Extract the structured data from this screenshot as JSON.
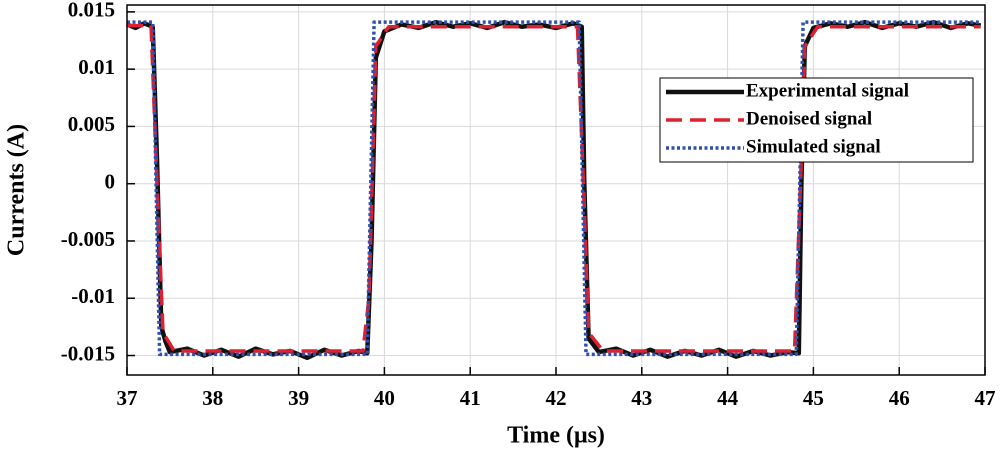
{
  "chart_data": {
    "type": "line",
    "x_label": "Time (μs)",
    "y_label": "Currents (A)",
    "xlim": [
      37,
      47
    ],
    "xticks": [
      37,
      38,
      39,
      40,
      41,
      42,
      43,
      44,
      45,
      46,
      47
    ],
    "ylim": [
      -0.0167,
      0.0156
    ],
    "yticks": [
      -0.015,
      -0.01,
      -0.005,
      0,
      0.005,
      0.01,
      0.015
    ],
    "grid": true,
    "legend": "upper right",
    "series": [
      {
        "name": "Experimental signal",
        "color": "#111111",
        "style": "solid",
        "x": [
          37.0,
          37.1,
          37.2,
          37.3,
          37.35,
          37.4,
          37.45,
          37.5,
          37.7,
          37.9,
          38.1,
          38.3,
          38.5,
          38.7,
          38.9,
          39.1,
          39.3,
          39.5,
          39.7,
          39.8,
          39.85,
          39.9,
          40.0,
          40.2,
          40.4,
          40.6,
          40.8,
          41.0,
          41.2,
          41.4,
          41.6,
          41.8,
          42.0,
          42.2,
          42.3,
          42.33,
          42.38,
          42.5,
          42.7,
          42.9,
          43.1,
          43.3,
          43.5,
          43.7,
          43.9,
          44.1,
          44.3,
          44.5,
          44.7,
          44.83,
          44.86,
          44.9,
          45.0,
          45.2,
          45.4,
          45.6,
          45.8,
          46.0,
          46.2,
          46.4,
          46.6,
          46.8,
          46.95
        ],
        "values": [
          0.0139,
          0.0136,
          0.014,
          0.0137,
          0.002,
          -0.0125,
          -0.0138,
          -0.0147,
          -0.0144,
          -0.015,
          -0.0145,
          -0.0151,
          -0.0144,
          -0.0149,
          -0.0146,
          -0.0152,
          -0.0145,
          -0.015,
          -0.0146,
          -0.0148,
          -0.005,
          0.011,
          0.0133,
          0.0139,
          0.0136,
          0.0141,
          0.0137,
          0.014,
          0.0136,
          0.0141,
          0.0137,
          0.0139,
          0.0136,
          0.014,
          0.0137,
          0.0,
          -0.0135,
          -0.0147,
          -0.0144,
          -0.015,
          -0.0145,
          -0.0151,
          -0.0146,
          -0.015,
          -0.0145,
          -0.0151,
          -0.0146,
          -0.015,
          -0.0147,
          -0.0148,
          0.0,
          0.012,
          0.0136,
          0.014,
          0.0137,
          0.0141,
          0.0136,
          0.014,
          0.0137,
          0.0141,
          0.0136,
          0.014,
          0.0138
        ]
      },
      {
        "name": "Denoised signal",
        "color": "#e0202f",
        "style": "dashed",
        "x": [
          37.0,
          37.28,
          37.35,
          37.42,
          37.55,
          39.75,
          39.82,
          39.9,
          40.05,
          42.25,
          42.32,
          42.38,
          42.55,
          44.78,
          44.85,
          44.9,
          45.05,
          46.95
        ],
        "values": [
          0.0138,
          0.0138,
          0,
          -0.013,
          -0.0146,
          -0.0146,
          -0.01,
          0.012,
          0.0137,
          0.0137,
          0,
          -0.013,
          -0.0146,
          -0.0146,
          0,
          0.012,
          0.0137,
          0.0137
        ]
      },
      {
        "name": "Simulated signal",
        "color": "#3050b0",
        "style": "dotted",
        "x": [
          37.0,
          37.3,
          37.38,
          39.8,
          39.88,
          42.27,
          42.35,
          44.8,
          44.88,
          46.95
        ],
        "values": [
          0.0141,
          0.0141,
          -0.0149,
          -0.0149,
          0.0141,
          0.0141,
          -0.0149,
          -0.0149,
          0.0141,
          0.0141
        ]
      }
    ]
  }
}
